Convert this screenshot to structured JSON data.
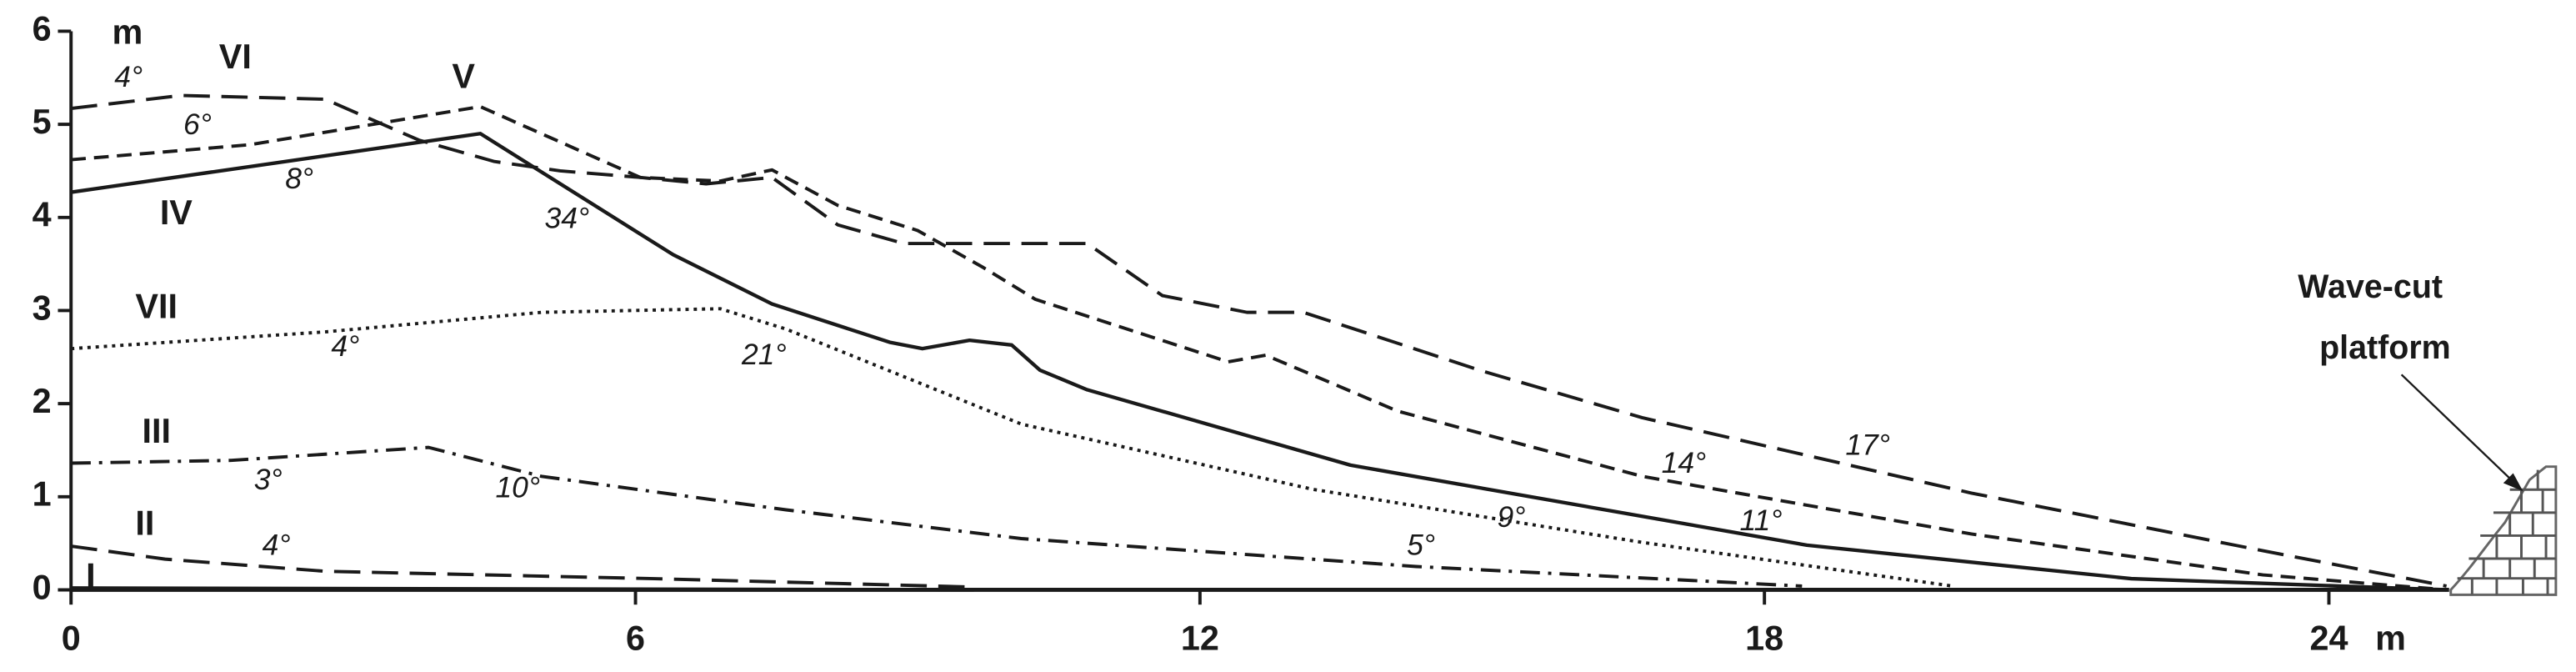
{
  "chart_data": {
    "type": "line",
    "x_label": "m",
    "y_label": "m",
    "xlim": [
      0,
      26.5
    ],
    "ylim": [
      0,
      6
    ],
    "xticks": [
      0,
      6,
      12,
      18,
      24
    ],
    "yticks": [
      0,
      1,
      2,
      3,
      4,
      5,
      6
    ],
    "series": [
      {
        "name": "I",
        "color": "#1a1a1a",
        "style": "solid",
        "x": [
          0,
          9.6
        ],
        "y": [
          0.02,
          0
        ]
      },
      {
        "name": "II",
        "color": "#1a1a1a",
        "style": "longdash",
        "x": [
          0,
          1,
          2.7,
          6.2,
          9.6
        ],
        "y": [
          0.47,
          0.33,
          0.2,
          0.12,
          0.03
        ]
      },
      {
        "name": "III",
        "color": "#1a1a1a",
        "style": "dashdot",
        "x": [
          0,
          1.7,
          3.8,
          5,
          7.6,
          10.1,
          14.3,
          18.4
        ],
        "y": [
          1.36,
          1.39,
          1.53,
          1.22,
          0.86,
          0.55,
          0.25,
          0.04
        ]
      },
      {
        "name": "IV",
        "color": "#1a1a1a",
        "style": "solid",
        "x": [
          0,
          4.35,
          6.4,
          7.45,
          8.7,
          9.05,
          9.55,
          10,
          10.3,
          10.8,
          13.6,
          18.45,
          21.9,
          25.25
        ],
        "y": [
          4.27,
          4.9,
          3.6,
          3.07,
          2.66,
          2.59,
          2.68,
          2.63,
          2.36,
          2.15,
          1.34,
          0.48,
          0.12,
          0
        ]
      },
      {
        "name": "V",
        "color": "#1a1a1a",
        "style": "dashed",
        "x": [
          0,
          1.9,
          4.35,
          6.05,
          6.9,
          7.45,
          8.15,
          9,
          9.7,
          10.25,
          12.3,
          12.7,
          14.1,
          16.7,
          20.2,
          23.3,
          25.25
        ],
        "y": [
          4.62,
          4.78,
          5.19,
          4.43,
          4.39,
          4.51,
          4.13,
          3.86,
          3.46,
          3.12,
          2.45,
          2.52,
          1.92,
          1.22,
          0.6,
          0.16,
          0
        ]
      },
      {
        "name": "VI",
        "color": "#1a1a1a",
        "style": "longdash",
        "x": [
          0,
          1.17,
          2.7,
          3.7,
          4.5,
          5.2,
          6.05,
          6.75,
          7.45,
          8.15,
          8.85,
          10.8,
          11.6,
          12.5,
          13.1,
          15,
          16.7,
          20.2,
          23.3,
          25.25
        ],
        "y": [
          5.17,
          5.31,
          5.27,
          4.83,
          4.6,
          4.5,
          4.43,
          4.36,
          4.43,
          3.92,
          3.72,
          3.72,
          3.16,
          2.98,
          2.98,
          2.35,
          1.85,
          1.04,
          0.42,
          0.04
        ]
      },
      {
        "name": "VII",
        "color": "#1a1a1a",
        "style": "dotted",
        "x": [
          0,
          2.7,
          5,
          6.9,
          7.6,
          10.1,
          13.2,
          16.7,
          20
        ],
        "y": [
          2.59,
          2.77,
          2.98,
          3.02,
          2.8,
          1.78,
          1.08,
          0.51,
          0.04
        ]
      }
    ],
    "annotations": [
      "4°",
      "6°",
      "8°",
      "34°",
      "21°",
      "4°",
      "3°",
      "10°",
      "4°",
      "5°",
      "9°",
      "11°",
      "14°",
      "17°"
    ],
    "platform_label": [
      "Wave-cut",
      "platform"
    ]
  }
}
